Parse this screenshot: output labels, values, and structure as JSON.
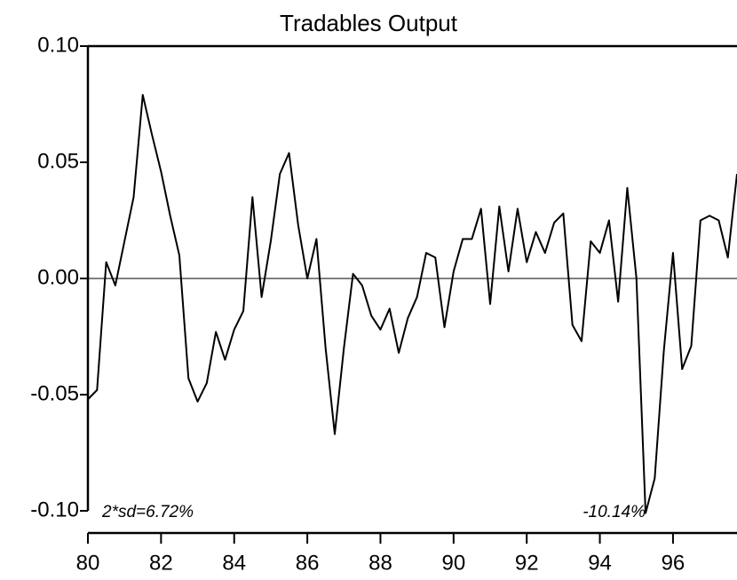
{
  "chart_data": {
    "type": "line",
    "title": "Tradables Output",
    "x": [
      80,
      80.25,
      80.5,
      80.75,
      81,
      81.25,
      81.5,
      81.75,
      82,
      82.25,
      82.5,
      82.75,
      83,
      83.25,
      83.5,
      83.75,
      84,
      84.25,
      84.5,
      84.75,
      85,
      85.25,
      85.5,
      85.75,
      86,
      86.25,
      86.5,
      86.75,
      87,
      87.25,
      87.5,
      87.75,
      88,
      88.25,
      88.5,
      88.75,
      89,
      89.25,
      89.5,
      89.75,
      90,
      90.25,
      90.5,
      90.75,
      91,
      91.25,
      91.5,
      91.75,
      92,
      92.25,
      92.5,
      92.75,
      93,
      93.25,
      93.5,
      93.75,
      94,
      94.25,
      94.5,
      94.75,
      95,
      95.25,
      95.5,
      95.75,
      96,
      96.25,
      96.5,
      96.75,
      97,
      97.25,
      97.5,
      97.75
    ],
    "series": [
      {
        "color": "#000000",
        "values": [
          -0.052,
          -0.048,
          0.007,
          -0.003,
          0.016,
          0.035,
          0.079,
          0.062,
          0.046,
          0.027,
          0.01,
          -0.043,
          -0.053,
          -0.045,
          -0.023,
          -0.035,
          -0.022,
          -0.014,
          0.035,
          -0.008,
          0.016,
          0.045,
          0.054,
          0.023,
          0.0,
          0.017,
          -0.03,
          -0.067,
          -0.03,
          0.002,
          -0.003,
          -0.016,
          -0.022,
          -0.013,
          -0.032,
          -0.017,
          -0.008,
          0.011,
          0.009,
          -0.021,
          0.003,
          0.017,
          0.017,
          0.03,
          -0.011,
          0.031,
          0.003,
          0.03,
          0.007,
          0.02,
          0.011,
          0.024,
          0.028,
          -0.02,
          -0.027,
          0.016,
          0.011,
          0.025,
          -0.01,
          0.039,
          0.0,
          -0.101,
          -0.086,
          -0.031,
          0.011,
          -0.039,
          -0.029,
          0.025,
          0.027,
          0.025,
          0.009,
          0.045
        ]
      }
    ],
    "xlim": [
      80,
      97.75
    ],
    "xticks": [
      80,
      82,
      84,
      86,
      88,
      90,
      92,
      94,
      96
    ],
    "ylim": [
      -0.1,
      0.1
    ],
    "yticks": [
      {
        "value": -0.1,
        "label": "-0.10"
      },
      {
        "value": -0.05,
        "label": "-0.05"
      },
      {
        "value": 0,
        "label": "0.00"
      },
      {
        "value": 0.05,
        "label": "0.05"
      },
      {
        "value": 0.1,
        "label": "0.10"
      }
    ],
    "grid": false,
    "annotations": [
      "2*sd=6.72%",
      "-10.14%"
    ]
  }
}
